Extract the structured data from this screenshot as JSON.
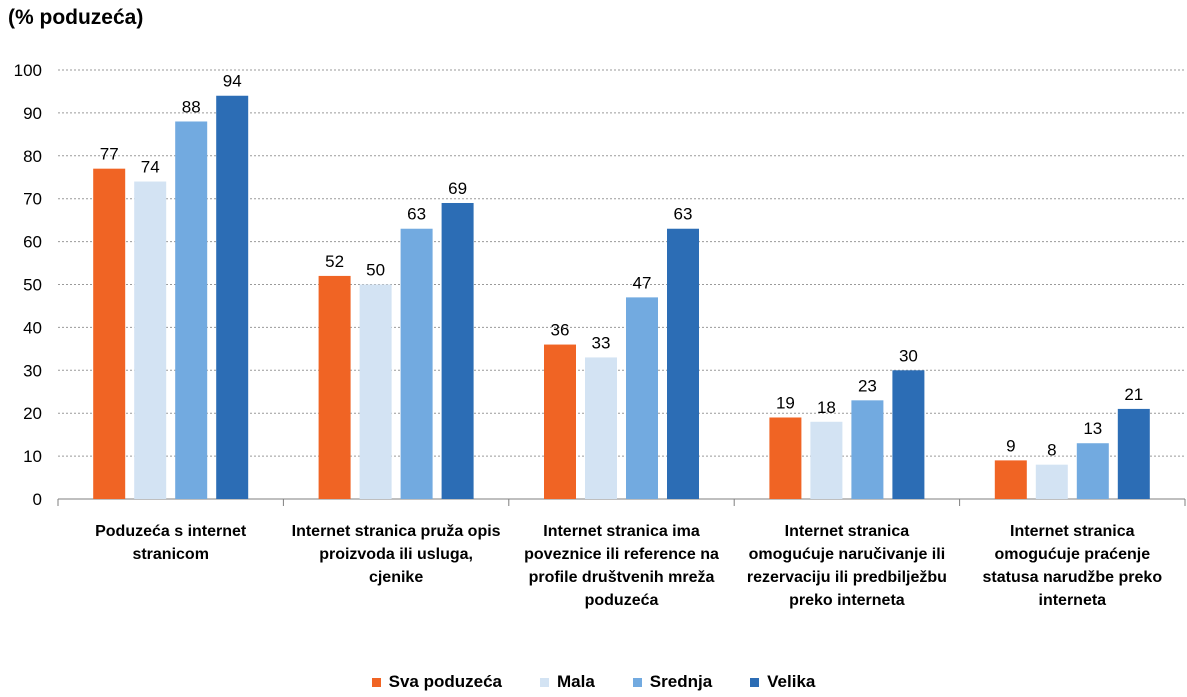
{
  "chart_data": {
    "type": "bar",
    "unit_label": "(% poduzeća)",
    "categories": [
      "Poduzeća s internet stranicom",
      "Internet stranica pruža opis proizvoda ili usluga, cjenike",
      "Internet stranica ima poveznice ili reference na profile društvenih mreža poduzeća",
      "Internet stranica omogućuje naručivanje ili rezervaciju ili predbilježbu preko interneta",
      "Internet stranica omogućuje praćenje statusa narudžbe preko interneta"
    ],
    "series": [
      {
        "name": "Sva poduzeća",
        "color": "#f06424",
        "values": [
          77,
          52,
          36,
          19,
          9
        ]
      },
      {
        "name": "Mala",
        "color": "#d3e3f3",
        "values": [
          74,
          50,
          33,
          18,
          8
        ]
      },
      {
        "name": "Srednja",
        "color": "#72aae0",
        "values": [
          88,
          63,
          47,
          23,
          13
        ]
      },
      {
        "name": "Velika",
        "color": "#2c6db5",
        "values": [
          94,
          69,
          63,
          30,
          21
        ]
      }
    ],
    "ylim": [
      0,
      100
    ],
    "yticks": [
      0,
      10,
      20,
      30,
      40,
      50,
      60,
      70,
      80,
      90,
      100
    ],
    "grid": true,
    "legend_position": "bottom"
  }
}
